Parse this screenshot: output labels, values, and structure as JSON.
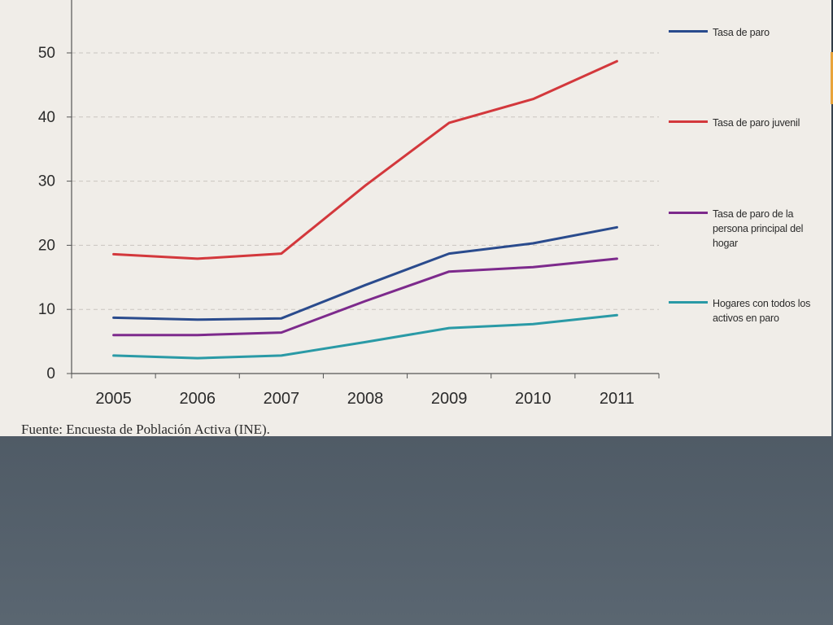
{
  "chart_data": {
    "type": "line",
    "title": "",
    "xlabel": "",
    "ylabel": "",
    "categories": [
      "2005",
      "2006",
      "2007",
      "2008",
      "2009",
      "2010",
      "2011"
    ],
    "yticks": [
      "0",
      "10",
      "20",
      "30",
      "40",
      "50"
    ],
    "ylim": [
      0,
      58
    ],
    "grid": true,
    "legend_position": "right",
    "series": [
      {
        "name": "Tasa de paro",
        "color": "#2a4b8d",
        "values": [
          8.7,
          8.4,
          8.6,
          13.8,
          18.7,
          20.3,
          22.8
        ]
      },
      {
        "name": "Tasa de paro juvenil",
        "color": "#d3383c",
        "values": [
          18.6,
          17.9,
          18.7,
          29.3,
          39.1,
          42.8,
          48.7
        ]
      },
      {
        "name": "Tasa de paro de la persona principal del hogar",
        "color": "#7d2a8c",
        "values": [
          6.0,
          6.0,
          6.4,
          11.3,
          15.9,
          16.6,
          17.9
        ]
      },
      {
        "name": "Hogares con todos los activos en paro",
        "color": "#2a9aa6",
        "values": [
          2.8,
          2.4,
          2.8,
          4.9,
          7.1,
          7.7,
          9.1
        ]
      }
    ],
    "source": "Fuente: Encuesta de Población Activa (INE)."
  }
}
